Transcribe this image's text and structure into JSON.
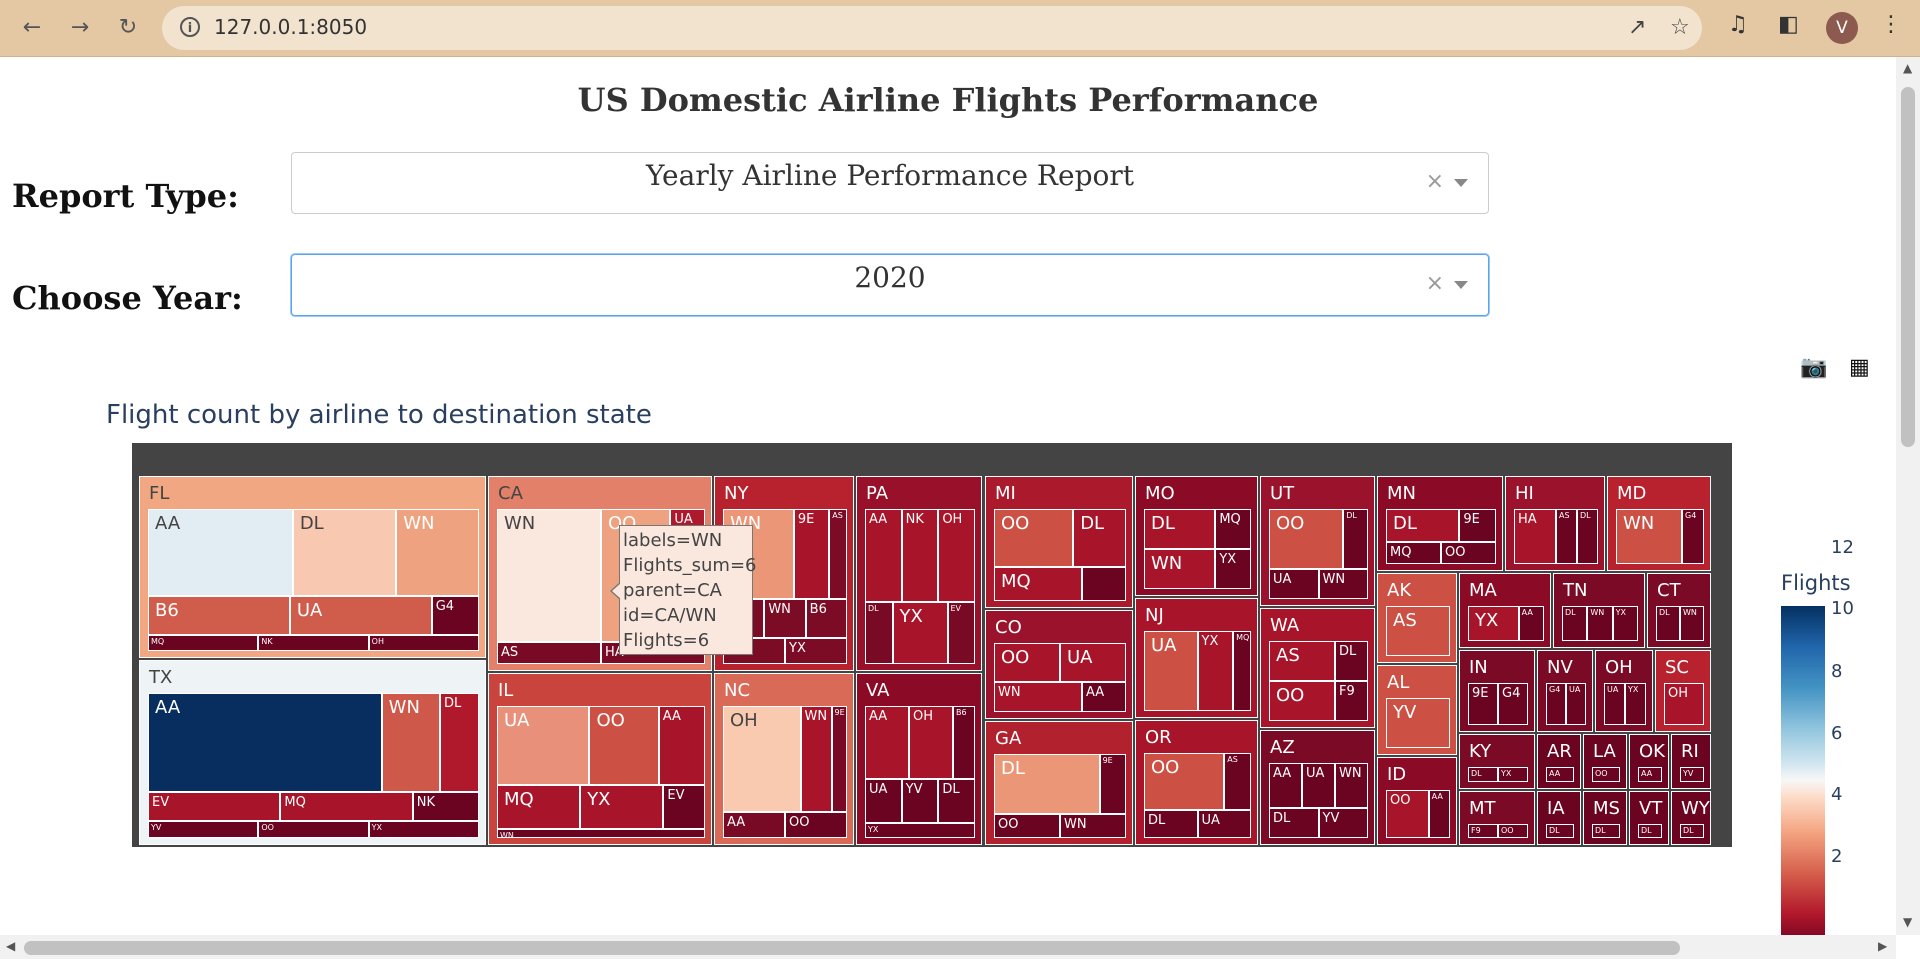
{
  "browser": {
    "url": "127.0.0.1:8050",
    "profile_initial": "V",
    "icons": [
      "back-icon",
      "forward-icon",
      "reload-icon",
      "info-icon",
      "share-icon",
      "star-icon",
      "media-icon",
      "sidepanel-icon",
      "menu-icon"
    ]
  },
  "page": {
    "title": "US Domestic Airline Flights Performance",
    "report_type": {
      "label": "Report Type:",
      "value": "Yearly Airline Performance Report"
    },
    "year": {
      "label": "Choose Year:",
      "value": "2020"
    },
    "chart_title": "Flight count by airline to destination state",
    "colorbar": {
      "title": "Flights",
      "ticks": [
        "12",
        "10",
        "8",
        "6",
        "4",
        "2"
      ]
    },
    "tooltip": [
      "labels=WN",
      "Flights_sum=6",
      "parent=CA",
      "id=CA/WN",
      "Flights=6"
    ]
  },
  "chart_data": {
    "type": "treemap",
    "title": "Flight count by airline to destination state",
    "colorscale": "RdBu",
    "color_range": [
      1,
      12
    ],
    "nodes": [
      {
        "id": "FL",
        "color": "#f1a882",
        "children": [
          {
            "id": "AA",
            "v": 7,
            "color": "#e2ecf3"
          },
          {
            "id": "DL",
            "v": 5,
            "color": "#f8c8b0"
          },
          {
            "id": "WN",
            "v": 4,
            "color": "#eea27f"
          },
          {
            "id": "B6",
            "v": 3,
            "color": "#d05c4c"
          },
          {
            "id": "UA",
            "v": 3,
            "color": "#d05c4c"
          },
          {
            "id": "G4",
            "v": 1,
            "color": "#6b0421"
          },
          {
            "id": "MQ",
            "v": 1,
            "color": "#6b0421"
          },
          {
            "id": "NK",
            "v": 1,
            "color": "#6b0421"
          },
          {
            "id": "OH",
            "v": 1,
            "color": "#6b0421"
          }
        ]
      },
      {
        "id": "TX",
        "color": "#eef3f5",
        "children": [
          {
            "id": "AA",
            "v": 12,
            "color": "#082e60"
          },
          {
            "id": "WN",
            "v": 3,
            "color": "#ce5849"
          },
          {
            "id": "DL",
            "v": 2,
            "color": "#b0192c"
          },
          {
            "id": "EV",
            "v": 2,
            "color": "#a8142a"
          },
          {
            "id": "MQ",
            "v": 2,
            "color": "#a8142a"
          },
          {
            "id": "NK",
            "v": 1,
            "color": "#6b0421"
          },
          {
            "id": "YV",
            "v": 1,
            "color": "#6b0421"
          },
          {
            "id": "OO",
            "v": 1,
            "color": "#6b0421"
          },
          {
            "id": "YX",
            "v": 1,
            "color": "#6b0421"
          }
        ]
      },
      {
        "id": "CA",
        "color": "#e2806a",
        "children": [
          {
            "id": "WN",
            "v": 6,
            "color": "#fae8df"
          },
          {
            "id": "OO",
            "v": 4,
            "color": "#eea27f"
          },
          {
            "id": "UA",
            "v": 2,
            "color": "#ae1a2d"
          },
          {
            "id": "AS",
            "v": 1,
            "color": "#790a25"
          },
          {
            "id": "HA",
            "v": 1,
            "color": "#790a25"
          }
        ]
      },
      {
        "id": "IL",
        "color": "#c8443c",
        "children": [
          {
            "id": "UA",
            "v": 4,
            "color": "#e9907a"
          },
          {
            "id": "OO",
            "v": 3,
            "color": "#cc5044"
          },
          {
            "id": "AA",
            "v": 2,
            "color": "#a8142a"
          },
          {
            "id": "MQ",
            "v": 2,
            "color": "#a8142a"
          },
          {
            "id": "YX",
            "v": 2,
            "color": "#a8142a"
          },
          {
            "id": "EV",
            "v": 1,
            "color": "#6b0421"
          },
          {
            "id": "WN",
            "v": 1,
            "color": "#6b0421"
          }
        ]
      },
      {
        "id": "NY",
        "color": "#b8222e",
        "children": [
          {
            "id": "WN",
            "v": 4,
            "color": "#ec9678"
          },
          {
            "id": "9E",
            "v": 2,
            "color": "#a8142a"
          },
          {
            "id": "AS",
            "v": 1,
            "color": "#7c0c26"
          },
          {
            "id": "DL",
            "v": 1,
            "color": "#7c0c26"
          },
          {
            "id": "WN",
            "v": 1,
            "color": "#7c0c26"
          },
          {
            "id": "B6",
            "v": 1,
            "color": "#7c0c26"
          },
          {
            "id": "EV",
            "v": 1,
            "color": "#7c0c26"
          },
          {
            "id": "YX",
            "v": 1,
            "color": "#7c0c26"
          }
        ]
      },
      {
        "id": "NC",
        "color": "#d86a57",
        "children": [
          {
            "id": "OH",
            "v": 5,
            "color": "#f9c9b0"
          },
          {
            "id": "WN",
            "v": 2,
            "color": "#a8142a"
          },
          {
            "id": "9E",
            "v": 1,
            "color": "#790a25"
          },
          {
            "id": "AA",
            "v": 1,
            "color": "#790a25"
          },
          {
            "id": "OO",
            "v": 1,
            "color": "#6b0421"
          }
        ]
      },
      {
        "id": "PA",
        "color": "#99102a",
        "children": [
          {
            "id": "AA",
            "v": 2,
            "color": "#a8142a"
          },
          {
            "id": "NK",
            "v": 2,
            "color": "#a8142a"
          },
          {
            "id": "OH",
            "v": 2,
            "color": "#a8142a"
          },
          {
            "id": "DL",
            "v": 1,
            "color": "#790a25"
          },
          {
            "id": "YX",
            "v": 2,
            "color": "#a8142a"
          },
          {
            "id": "EV",
            "v": 1,
            "color": "#790a25"
          }
        ]
      },
      {
        "id": "VA",
        "color": "#8b0a26",
        "children": [
          {
            "id": "AA",
            "v": 2,
            "color": "#a8142a"
          },
          {
            "id": "OH",
            "v": 2,
            "color": "#a8142a"
          },
          {
            "id": "B6",
            "v": 1,
            "color": "#6b0421"
          },
          {
            "id": "UA",
            "v": 1,
            "color": "#6b0421"
          },
          {
            "id": "YV",
            "v": 1,
            "color": "#6b0421"
          },
          {
            "id": "DL",
            "v": 1,
            "color": "#6b0421"
          },
          {
            "id": "YX",
            "v": 1,
            "color": "#6b0421"
          }
        ]
      },
      {
        "id": "MI",
        "color": "#ab1a2c",
        "children": [
          {
            "id": "OO",
            "v": 3,
            "color": "#cc5044"
          },
          {
            "id": "DL",
            "v": 2,
            "color": "#a8142a"
          },
          {
            "id": "MQ",
            "v": 2,
            "color": "#a8142a"
          },
          {
            "id": "",
            "v": 1,
            "color": "#6b0421"
          }
        ]
      },
      {
        "id": "CO",
        "color": "#9a122b",
        "children": [
          {
            "id": "OO",
            "v": 2,
            "color": "#a8142a"
          },
          {
            "id": "UA",
            "v": 2,
            "color": "#a8142a"
          },
          {
            "id": "WN",
            "v": 2,
            "color": "#a8142a"
          },
          {
            "id": "AA",
            "v": 1,
            "color": "#6b0421"
          }
        ]
      },
      {
        "id": "GA",
        "color": "#b2222e",
        "children": [
          {
            "id": "DL",
            "v": 4,
            "color": "#ec9678"
          },
          {
            "id": "9E",
            "v": 1,
            "color": "#6b0421"
          },
          {
            "id": "OO",
            "v": 1,
            "color": "#6b0421"
          },
          {
            "id": "WN",
            "v": 1,
            "color": "#6b0421"
          }
        ]
      },
      {
        "id": "MO",
        "color": "#8b0a26",
        "children": [
          {
            "id": "DL",
            "v": 2,
            "color": "#a8142a"
          },
          {
            "id": "MQ",
            "v": 1,
            "color": "#6b0421"
          },
          {
            "id": "WN",
            "v": 2,
            "color": "#a8142a"
          },
          {
            "id": "YX",
            "v": 1,
            "color": "#6b0421"
          }
        ]
      },
      {
        "id": "NJ",
        "color": "#a8142a",
        "children": [
          {
            "id": "UA",
            "v": 3,
            "color": "#cc5044"
          },
          {
            "id": "YX",
            "v": 2,
            "color": "#a8142a"
          },
          {
            "id": "MQ",
            "v": 1,
            "color": "#6b0421"
          }
        ]
      },
      {
        "id": "OR",
        "color": "#a8142a",
        "children": [
          {
            "id": "OO",
            "v": 3,
            "color": "#cc5044"
          },
          {
            "id": "AS",
            "v": 1,
            "color": "#6b0421"
          },
          {
            "id": "DL",
            "v": 1,
            "color": "#6b0421"
          },
          {
            "id": "UA",
            "v": 1,
            "color": "#6b0421"
          }
        ]
      },
      {
        "id": "UT",
        "color": "#9a122b",
        "children": [
          {
            "id": "OO",
            "v": 3,
            "color": "#cc5044"
          },
          {
            "id": "DL",
            "v": 1,
            "color": "#6b0421"
          },
          {
            "id": "UA",
            "v": 1,
            "color": "#6b0421"
          },
          {
            "id": "WN",
            "v": 1,
            "color": "#6b0421"
          }
        ]
      },
      {
        "id": "WA",
        "color": "#a8142a",
        "children": [
          {
            "id": "AS",
            "v": 2,
            "color": "#a8142a"
          },
          {
            "id": "DL",
            "v": 1,
            "color": "#6b0421"
          },
          {
            "id": "OO",
            "v": 2,
            "color": "#a8142a"
          },
          {
            "id": "F9",
            "v": 1,
            "color": "#6b0421"
          }
        ]
      },
      {
        "id": "AZ",
        "color": "#7a0a25",
        "children": [
          {
            "id": "AA",
            "v": 1,
            "color": "#6b0421"
          },
          {
            "id": "UA",
            "v": 1,
            "color": "#6b0421"
          },
          {
            "id": "WN",
            "v": 1,
            "color": "#6b0421"
          },
          {
            "id": "DL",
            "v": 1,
            "color": "#6b0421"
          },
          {
            "id": "YV",
            "v": 1,
            "color": "#6b0421"
          }
        ]
      },
      {
        "id": "MN",
        "color": "#8b0a26",
        "children": [
          {
            "id": "DL",
            "v": 2,
            "color": "#a8142a"
          },
          {
            "id": "9E",
            "v": 1,
            "color": "#6b0421"
          },
          {
            "id": "MQ",
            "v": 1,
            "color": "#6b0421"
          },
          {
            "id": "OO",
            "v": 1,
            "color": "#6b0421"
          }
        ]
      },
      {
        "id": "HI",
        "color": "#9a122b",
        "children": [
          {
            "id": "HA",
            "v": 2,
            "color": "#a8142a"
          },
          {
            "id": "AS",
            "v": 1,
            "color": "#6b0421"
          },
          {
            "id": "DL",
            "v": 1,
            "color": "#6b0421"
          }
        ]
      },
      {
        "id": "MD",
        "color": "#b8222e",
        "children": [
          {
            "id": "WN",
            "v": 3,
            "color": "#cc5044"
          },
          {
            "id": "G4",
            "v": 1,
            "color": "#6b0421"
          }
        ]
      },
      {
        "id": "AK",
        "color": "#cc5044",
        "children": [
          {
            "id": "AS",
            "v": 3,
            "color": "#cc5044"
          }
        ]
      },
      {
        "id": "AL",
        "color": "#cc5044",
        "children": [
          {
            "id": "YV",
            "v": 3,
            "color": "#cc5044"
          }
        ]
      },
      {
        "id": "ID",
        "color": "#8b0a26",
        "children": [
          {
            "id": "OO",
            "v": 2,
            "color": "#a8142a"
          },
          {
            "id": "AA",
            "v": 1,
            "color": "#6b0421"
          }
        ]
      },
      {
        "id": "MA",
        "color": "#8b0a26",
        "children": [
          {
            "id": "YX",
            "v": 2,
            "color": "#a8142a"
          },
          {
            "id": "AA",
            "v": 1,
            "color": "#6b0421"
          }
        ]
      },
      {
        "id": "TN",
        "color": "#7a0a25",
        "children": [
          {
            "id": "DL",
            "v": 1,
            "color": "#6b0421"
          },
          {
            "id": "WN",
            "v": 1,
            "color": "#6b0421"
          },
          {
            "id": "YX",
            "v": 1,
            "color": "#6b0421"
          }
        ]
      },
      {
        "id": "CT",
        "color": "#7a0a25",
        "children": [
          {
            "id": "DL",
            "v": 1,
            "color": "#6b0421"
          },
          {
            "id": "WN",
            "v": 1,
            "color": "#6b0421"
          }
        ]
      },
      {
        "id": "IN",
        "color": "#7a0a25",
        "children": [
          {
            "id": "9E",
            "v": 1,
            "color": "#6b0421"
          },
          {
            "id": "G4",
            "v": 1,
            "color": "#6b0421"
          }
        ]
      },
      {
        "id": "NV",
        "color": "#7a0a25",
        "children": [
          {
            "id": "G4",
            "v": 1,
            "color": "#6b0421"
          },
          {
            "id": "UA",
            "v": 1,
            "color": "#6b0421"
          }
        ]
      },
      {
        "id": "OH",
        "color": "#7a0a25",
        "children": [
          {
            "id": "UA",
            "v": 1,
            "color": "#6b0421"
          },
          {
            "id": "YX",
            "v": 1,
            "color": "#6b0421"
          }
        ]
      },
      {
        "id": "SC",
        "color": "#b8222e",
        "children": [
          {
            "id": "OH",
            "v": 2,
            "color": "#a8142a"
          }
        ]
      },
      {
        "id": "KY",
        "color": "#7a0a25",
        "children": [
          {
            "id": "DL",
            "v": 1,
            "color": "#6b0421"
          },
          {
            "id": "YX",
            "v": 1,
            "color": "#6b0421"
          }
        ]
      },
      {
        "id": "MT",
        "color": "#7a0a25",
        "children": [
          {
            "id": "F9",
            "v": 1,
            "color": "#6b0421"
          },
          {
            "id": "OO",
            "v": 1,
            "color": "#6b0421"
          }
        ]
      },
      {
        "id": "AR",
        "color": "#6b0421",
        "children": [
          {
            "id": "AA",
            "v": 1,
            "color": "#6b0421"
          }
        ]
      },
      {
        "id": "LA",
        "color": "#6b0421",
        "children": [
          {
            "id": "OO",
            "v": 1,
            "color": "#6b0421"
          }
        ]
      },
      {
        "id": "OK",
        "color": "#6b0421",
        "children": [
          {
            "id": "AA",
            "v": 1,
            "color": "#6b0421"
          }
        ]
      },
      {
        "id": "RI",
        "color": "#6b0421",
        "children": [
          {
            "id": "YV",
            "v": 1,
            "color": "#6b0421"
          }
        ]
      },
      {
        "id": "IA",
        "color": "#6b0421",
        "children": [
          {
            "id": "DL",
            "v": 1,
            "color": "#6b0421"
          }
        ]
      },
      {
        "id": "MS",
        "color": "#6b0421",
        "children": [
          {
            "id": "DL",
            "v": 1,
            "color": "#6b0421"
          }
        ]
      },
      {
        "id": "VT",
        "color": "#6b0421",
        "children": [
          {
            "id": "DL",
            "v": 1,
            "color": "#6b0421"
          }
        ]
      },
      {
        "id": "WY",
        "color": "#6b0421",
        "children": [
          {
            "id": "DL",
            "v": 1,
            "color": "#6b0421"
          }
        ]
      }
    ]
  }
}
